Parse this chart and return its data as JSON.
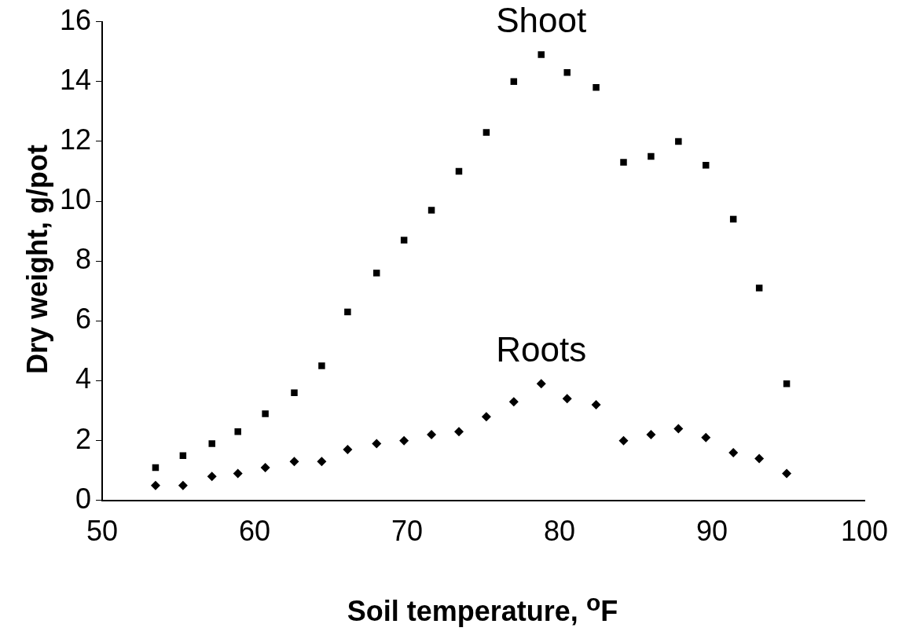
{
  "chart_data": {
    "type": "scatter",
    "xlabel": "Soil temperature, $^{o}$F",
    "ylabel": "Dry weight, g/pot",
    "xlim": [
      50,
      100
    ],
    "xticks": [
      50,
      60,
      70,
      80,
      90,
      100
    ],
    "ylim": [
      0,
      16
    ],
    "yticks": [
      0,
      2,
      4,
      6,
      8,
      10,
      12,
      14,
      16
    ],
    "grid": false,
    "legend": false,
    "x": [
      53.5,
      55.3,
      57.2,
      58.9,
      60.7,
      62.6,
      64.4,
      66.1,
      68.0,
      69.8,
      71.6,
      73.4,
      75.2,
      77.0,
      78.8,
      80.5,
      82.4,
      84.2,
      86.0,
      87.8,
      89.6,
      91.4,
      93.1,
      94.9
    ],
    "series": [
      {
        "name": "Shoot",
        "color": "#000000",
        "marker": "square",
        "values": [
          1.1,
          1.5,
          1.9,
          2.3,
          2.9,
          3.6,
          4.5,
          6.3,
          7.6,
          8.7,
          9.7,
          11.0,
          12.3,
          14.0,
          14.9,
          14.3,
          13.8,
          11.3,
          11.5,
          12.0,
          11.2,
          9.4,
          7.1,
          3.9
        ]
      },
      {
        "name": "Roots",
        "color": "#000000",
        "marker": "diamond",
        "values": [
          0.5,
          0.5,
          0.8,
          0.9,
          1.1,
          1.3,
          1.3,
          1.7,
          1.9,
          2.0,
          2.2,
          2.3,
          2.8,
          3.3,
          3.9,
          3.4,
          3.2,
          2.0,
          2.2,
          2.4,
          2.1,
          1.6,
          1.4,
          0.9
        ]
      }
    ]
  }
}
